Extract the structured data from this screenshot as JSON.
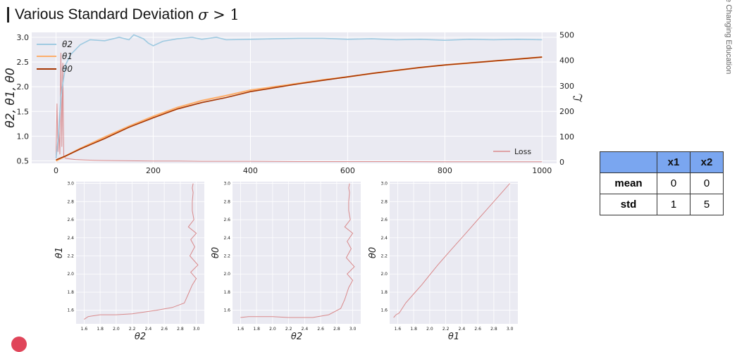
{
  "page": {
    "title_text": "Various Standard Deviation",
    "title_symbol": "σ",
    "title_op": ">",
    "title_value": "1",
    "side_text": "fe Changing Education"
  },
  "colors": {
    "theta2": "#9ecae1",
    "theta1": "#fdae6b",
    "theta0": "#a63603",
    "loss": "#d9898b",
    "grid_bg": "#eaeaf2",
    "table_header": "#7aa6f0"
  },
  "table": {
    "headers": [
      "",
      "x1",
      "x2"
    ],
    "rows": [
      {
        "label": "mean",
        "values": [
          "0",
          "0"
        ]
      },
      {
        "label": "std",
        "values": [
          "1",
          "5"
        ]
      }
    ]
  },
  "chart_data": [
    {
      "type": "line",
      "ylabel": "θ2, θ1, θ0",
      "y2label": "ℒ",
      "xlim": [
        -50,
        1030
      ],
      "ylim": [
        0.45,
        3.1
      ],
      "y2lim": [
        -5,
        510
      ],
      "xticks": [
        0,
        200,
        400,
        600,
        800,
        1000
      ],
      "yticks": [
        0.5,
        1.0,
        1.5,
        2.0,
        2.5,
        3.0
      ],
      "y2ticks": [
        0,
        100,
        200,
        300,
        400,
        500
      ],
      "legend": "top-left",
      "legend2": "bottom-right",
      "series": [
        {
          "name": "θ2",
          "axis": "left",
          "color_key": "theta2",
          "x": [
            0,
            5,
            10,
            20,
            30,
            50,
            70,
            100,
            130,
            150,
            160,
            180,
            190,
            200,
            220,
            250,
            280,
            300,
            330,
            350,
            400,
            450,
            500,
            550,
            600,
            650,
            700,
            750,
            800,
            850,
            900,
            950,
            1000
          ],
          "y": [
            0.55,
            1.0,
            1.8,
            2.45,
            2.65,
            2.85,
            2.95,
            2.93,
            3.0,
            2.95,
            3.05,
            2.97,
            2.88,
            2.83,
            2.92,
            2.97,
            3.0,
            2.96,
            3.0,
            2.95,
            2.96,
            2.97,
            2.98,
            2.98,
            2.96,
            2.97,
            2.95,
            2.96,
            2.94,
            2.96,
            2.95,
            2.96,
            2.95
          ]
        },
        {
          "name": "θ1",
          "axis": "left",
          "color_key": "theta1",
          "x": [
            0,
            10,
            20,
            50,
            100,
            150,
            200,
            250,
            300,
            350,
            400,
            450,
            500,
            550,
            600,
            650,
            700,
            750,
            800,
            850,
            900,
            950,
            1000
          ],
          "y": [
            0.5,
            0.55,
            0.6,
            0.75,
            0.98,
            1.2,
            1.4,
            1.58,
            1.72,
            1.82,
            1.93,
            2.0,
            2.07,
            2.14,
            2.2,
            2.27,
            2.33,
            2.39,
            2.44,
            2.48,
            2.52,
            2.56,
            2.6
          ]
        },
        {
          "name": "θ0",
          "axis": "left",
          "color_key": "theta0",
          "x": [
            0,
            10,
            20,
            50,
            100,
            150,
            200,
            250,
            300,
            350,
            400,
            450,
            500,
            550,
            600,
            650,
            700,
            750,
            800,
            850,
            900,
            950,
            1000
          ],
          "y": [
            0.52,
            0.56,
            0.6,
            0.74,
            0.95,
            1.18,
            1.37,
            1.55,
            1.68,
            1.78,
            1.9,
            1.98,
            2.06,
            2.13,
            2.2,
            2.27,
            2.33,
            2.39,
            2.44,
            2.48,
            2.52,
            2.56,
            2.6
          ]
        },
        {
          "name": "Loss",
          "axis": "right",
          "color_key": "loss",
          "x": [
            0,
            2,
            4,
            6,
            8,
            10,
            12,
            14,
            16,
            18,
            20,
            30,
            40,
            60,
            80,
            100,
            150,
            200,
            250,
            300,
            400,
            500,
            600,
            700,
            800,
            900,
            1000
          ],
          "y": [
            20,
            230,
            40,
            120,
            30,
            430,
            60,
            390,
            25,
            18,
            15,
            12,
            10,
            8,
            7,
            6,
            5,
            4,
            4,
            3,
            3,
            2,
            2,
            2,
            1,
            1,
            1
          ]
        }
      ]
    },
    {
      "type": "line",
      "xlabel": "θ2",
      "ylabel": "θ1",
      "xlim": [
        1.5,
        3.1
      ],
      "ylim": [
        1.45,
        3.02
      ],
      "xticks": [
        1.6,
        1.8,
        2.0,
        2.2,
        2.4,
        2.6,
        2.8,
        3.0
      ],
      "yticks": [
        1.6,
        1.8,
        2.0,
        2.2,
        2.4,
        2.6,
        2.8,
        3.0
      ],
      "series": [
        {
          "color_key": "loss",
          "x": [
            1.6,
            1.65,
            1.8,
            2.0,
            2.2,
            2.5,
            2.7,
            2.85,
            2.9,
            2.95,
            3.0,
            2.93,
            3.02,
            2.92,
            2.98,
            2.93,
            3.0,
            2.9,
            2.97,
            2.95,
            2.95,
            2.96,
            2.95,
            2.96
          ],
          "y": [
            1.5,
            1.53,
            1.55,
            1.55,
            1.56,
            1.6,
            1.63,
            1.68,
            1.78,
            1.88,
            1.95,
            2.02,
            2.1,
            2.2,
            2.3,
            2.38,
            2.45,
            2.52,
            2.6,
            2.7,
            2.8,
            2.9,
            2.95,
            3.0
          ]
        }
      ]
    },
    {
      "type": "line",
      "xlabel": "θ2",
      "ylabel": "θ0",
      "xlim": [
        1.5,
        3.1
      ],
      "ylim": [
        1.45,
        3.02
      ],
      "xticks": [
        1.6,
        1.8,
        2.0,
        2.2,
        2.4,
        2.6,
        2.8,
        3.0
      ],
      "yticks": [
        1.6,
        1.8,
        2.0,
        2.2,
        2.4,
        2.6,
        2.8,
        3.0
      ],
      "series": [
        {
          "color_key": "loss",
          "x": [
            1.6,
            1.7,
            1.8,
            2.0,
            2.2,
            2.5,
            2.7,
            2.85,
            2.9,
            2.95,
            3.0,
            2.93,
            3.02,
            2.92,
            2.98,
            2.93,
            3.0,
            2.9,
            2.97,
            2.95,
            2.95,
            2.96,
            2.95,
            2.96
          ],
          "y": [
            1.52,
            1.53,
            1.53,
            1.53,
            1.52,
            1.52,
            1.55,
            1.62,
            1.72,
            1.85,
            1.93,
            2.0,
            2.08,
            2.18,
            2.28,
            2.36,
            2.45,
            2.52,
            2.6,
            2.7,
            2.8,
            2.9,
            2.95,
            3.0
          ]
        }
      ]
    },
    {
      "type": "line",
      "xlabel": "θ1",
      "ylabel": "θ0",
      "xlim": [
        1.5,
        3.1
      ],
      "ylim": [
        1.45,
        3.02
      ],
      "xticks": [
        1.6,
        1.8,
        2.0,
        2.2,
        2.4,
        2.6,
        2.8,
        3.0
      ],
      "yticks": [
        1.6,
        1.8,
        2.0,
        2.2,
        2.4,
        2.6,
        2.8,
        3.0
      ],
      "series": [
        {
          "color_key": "loss",
          "x": [
            1.55,
            1.58,
            1.62,
            1.7,
            1.8,
            1.9,
            2.0,
            2.1,
            2.2,
            2.3,
            2.4,
            2.5,
            2.6,
            2.7,
            2.8,
            2.9,
            3.0
          ],
          "y": [
            1.52,
            1.55,
            1.57,
            1.68,
            1.78,
            1.88,
            1.99,
            2.1,
            2.2,
            2.3,
            2.4,
            2.5,
            2.6,
            2.7,
            2.8,
            2.9,
            3.0
          ]
        }
      ]
    }
  ]
}
